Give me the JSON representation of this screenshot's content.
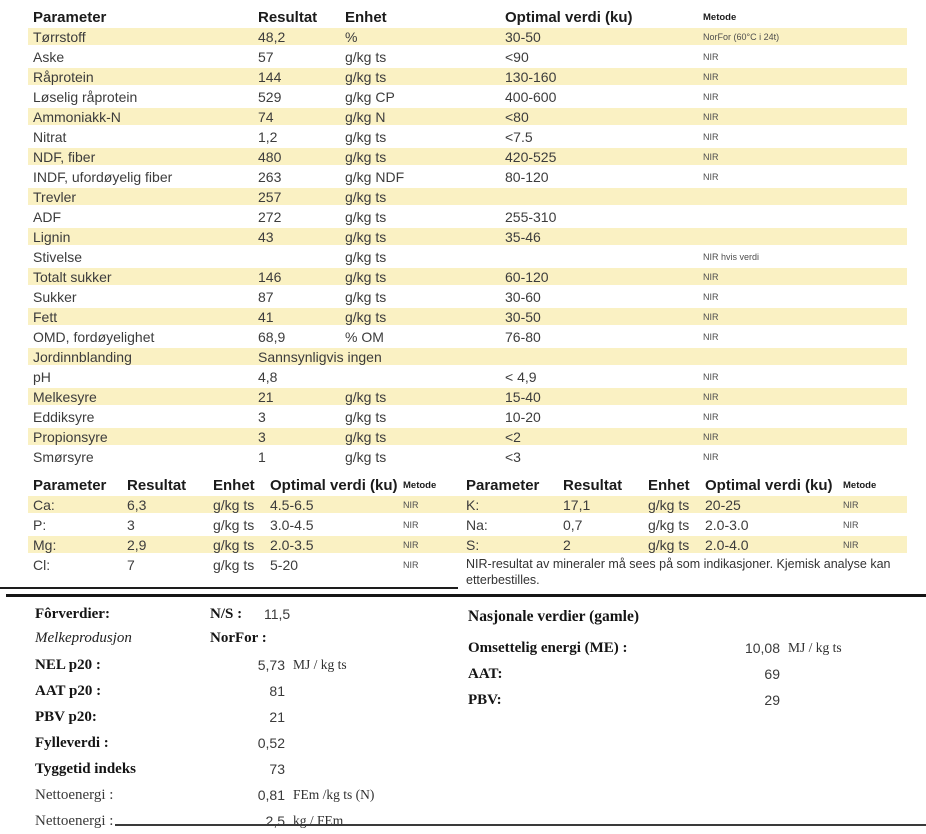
{
  "colors": {
    "highlight": "#FAF1C3",
    "text": "#3c3c3c"
  },
  "main_table": {
    "headers": {
      "parameter": "Parameter",
      "resultat": "Resultat",
      "enhet": "Enhet",
      "optimal": "Optimal verdi (ku)",
      "metode": "Metode"
    },
    "rows": [
      {
        "parameter": "Tørrstoff",
        "resultat": "48,2",
        "enhet": "%",
        "optimal": "30-50",
        "metode": "NorFor (60°C i 24t)",
        "highlight": true
      },
      {
        "parameter": "Aske",
        "resultat": "57",
        "enhet": "g/kg ts",
        "optimal": "<90",
        "metode": "NIR",
        "highlight": false
      },
      {
        "parameter": "Råprotein",
        "resultat": "144",
        "enhet": "g/kg ts",
        "optimal": "130-160",
        "metode": "NIR",
        "highlight": true
      },
      {
        "parameter": "Løselig råprotein",
        "resultat": "529",
        "enhet": "g/kg CP",
        "optimal": "400-600",
        "metode": "NIR",
        "highlight": false
      },
      {
        "parameter": "Ammoniakk-N",
        "resultat": "74",
        "enhet": "g/kg N",
        "optimal": "<80",
        "metode": "NIR",
        "highlight": true
      },
      {
        "parameter": "Nitrat",
        "resultat": "1,2",
        "enhet": "g/kg ts",
        "optimal": "<7.5",
        "metode": "NIR",
        "highlight": false
      },
      {
        "parameter": "NDF, fiber",
        "resultat": "480",
        "enhet": "g/kg ts",
        "optimal": "420-525",
        "metode": "NIR",
        "highlight": true
      },
      {
        "parameter": "INDF, ufordøyelig fiber",
        "resultat": "263",
        "enhet": "g/kg NDF",
        "optimal": "80-120",
        "metode": "NIR",
        "highlight": false
      },
      {
        "parameter": "Trevler",
        "resultat": "257",
        "enhet": "g/kg ts",
        "optimal": "",
        "metode": "",
        "highlight": true
      },
      {
        "parameter": "ADF",
        "resultat": "272",
        "enhet": "g/kg ts",
        "optimal": "255-310",
        "metode": "",
        "highlight": false
      },
      {
        "parameter": "Lignin",
        "resultat": "43",
        "enhet": "g/kg ts",
        "optimal": "35-46",
        "metode": "",
        "highlight": true
      },
      {
        "parameter": "Stivelse",
        "resultat": "",
        "enhet": "g/kg ts",
        "optimal": "",
        "metode": "NIR hvis verdi",
        "highlight": false
      },
      {
        "parameter": "Totalt sukker",
        "resultat": "146",
        "enhet": "g/kg ts",
        "optimal": "60-120",
        "metode": "NIR",
        "highlight": true
      },
      {
        "parameter": "Sukker",
        "resultat": "87",
        "enhet": "g/kg ts",
        "optimal": "30-60",
        "metode": "NIR",
        "highlight": false
      },
      {
        "parameter": "Fett",
        "resultat": "41",
        "enhet": "g/kg ts",
        "optimal": "30-50",
        "metode": "NIR",
        "highlight": true
      },
      {
        "parameter": "OMD, fordøyelighet",
        "resultat": "68,9",
        "enhet": "% OM",
        "optimal": "76-80",
        "metode": "NIR",
        "highlight": false
      },
      {
        "parameter": "Jordinnblanding",
        "resultat": "Sannsynligvis ingen",
        "enhet": "",
        "optimal": "",
        "metode": "",
        "highlight": true
      },
      {
        "parameter": "pH",
        "resultat": "4,8",
        "enhet": "",
        "optimal": "< 4,9",
        "metode": "NIR",
        "highlight": false
      },
      {
        "parameter": "Melkesyre",
        "resultat": "21",
        "enhet": "g/kg ts",
        "optimal": "15-40",
        "metode": "NIR",
        "highlight": true
      },
      {
        "parameter": "Eddiksyre",
        "resultat": "3",
        "enhet": "g/kg ts",
        "optimal": "10-20",
        "metode": "NIR",
        "highlight": false
      },
      {
        "parameter": "Propionsyre",
        "resultat": "3",
        "enhet": "g/kg ts",
        "optimal": "<2",
        "metode": "NIR",
        "highlight": true
      },
      {
        "parameter": "Smørsyre",
        "resultat": "1",
        "enhet": "g/kg ts",
        "optimal": "<3",
        "metode": "NIR",
        "highlight": false
      }
    ]
  },
  "minerals_left": {
    "headers": {
      "parameter": "Parameter",
      "resultat": "Resultat",
      "enhet": "Enhet",
      "optimal": "Optimal verdi (ku)",
      "metode": "Metode"
    },
    "rows": [
      {
        "parameter": "Ca:",
        "resultat": "6,3",
        "enhet": "g/kg ts",
        "optimal": "4.5-6.5",
        "metode": "NIR",
        "highlight": true
      },
      {
        "parameter": "P:",
        "resultat": "3",
        "enhet": "g/kg ts",
        "optimal": "3.0-4.5",
        "metode": "NIR",
        "highlight": false
      },
      {
        "parameter": "Mg:",
        "resultat": "2,9",
        "enhet": "g/kg ts",
        "optimal": "2.0-3.5",
        "metode": "NIR",
        "highlight": true
      },
      {
        "parameter": "Cl:",
        "resultat": "7",
        "enhet": "g/kg ts",
        "optimal": "5-20",
        "metode": "NIR",
        "highlight": false
      }
    ]
  },
  "minerals_right": {
    "headers": {
      "parameter": "Parameter",
      "resultat": "Resultat",
      "enhet": "Enhet",
      "optimal": "Optimal verdi (ku)",
      "metode": "Metode"
    },
    "rows": [
      {
        "parameter": "K:",
        "resultat": "17,1",
        "enhet": "g/kg ts",
        "optimal": "20-25",
        "metode": "NIR",
        "highlight": true
      },
      {
        "parameter": "Na:",
        "resultat": "0,7",
        "enhet": "g/kg ts",
        "optimal": "2.0-3.0",
        "metode": "NIR",
        "highlight": false
      },
      {
        "parameter": "S:",
        "resultat": "2",
        "enhet": "g/kg ts",
        "optimal": "2.0-4.0",
        "metode": "NIR",
        "highlight": true
      }
    ],
    "note": "NIR-resultat av mineraler må sees på som indikasjoner. Kjemisk analyse kan etterbestilles."
  },
  "bottom_left": {
    "title": "Fôrverdier:",
    "subtitle": "Melkeprodusjon",
    "ns_label": "N/S :",
    "ns_value": "11,5",
    "norfor_label": "NorFor :",
    "rows": [
      {
        "label": "NEL p20 :",
        "value": "5,73",
        "unit": "MJ / kg ts",
        "bold": true
      },
      {
        "label": "AAT p20 :",
        "value": "81",
        "unit": "",
        "bold": true
      },
      {
        "label": "PBV  p20:",
        "value": "21",
        "unit": "",
        "bold": true
      },
      {
        "label": "Fylleverdi :",
        "value": "0,52",
        "unit": "",
        "bold": true
      },
      {
        "label": "Tyggetid indeks",
        "value": "73",
        "unit": "",
        "bold": true
      },
      {
        "label": "Nettoenergi :",
        "value": "0,81",
        "unit": "FEm /kg ts (N)",
        "bold": false
      },
      {
        "label": "Nettoenergi :",
        "value": "2,5",
        "unit": "kg / FEm",
        "bold": false
      }
    ]
  },
  "bottom_right": {
    "title": "Nasjonale verdier (gamle)",
    "rows": [
      {
        "label": "Omsettelig energi (ME) :",
        "value": "10,08",
        "unit": "MJ / kg ts"
      },
      {
        "label": "AAT:",
        "value": "69",
        "unit": ""
      },
      {
        "label": "PBV:",
        "value": "29",
        "unit": ""
      }
    ]
  }
}
